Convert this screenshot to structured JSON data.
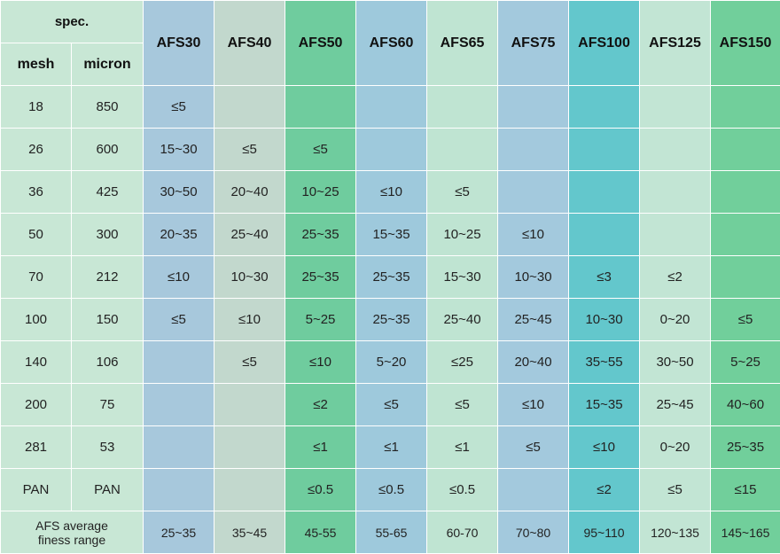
{
  "header": {
    "spec": "spec.",
    "mesh": "mesh",
    "micron": "micron",
    "grades": [
      "AFS30",
      "AFS40",
      "AFS50",
      "AFS60",
      "AFS65",
      "AFS75",
      "AFS100",
      "AFS125",
      "AFS150"
    ]
  },
  "colors": {
    "left": "#c8e7d5",
    "AFS30": "#a7c8dc",
    "AFS40": "#c2d8cd",
    "AFS50": "#6fcc9e",
    "AFS60": "#9ec9dc",
    "AFS65": "#bfe4d2",
    "AFS75": "#a3c9dd",
    "AFS100": "#63c7cc",
    "AFS125": "#c2e5d4",
    "AFS150": "#71cf9b"
  },
  "rows": [
    {
      "mesh": "18",
      "micron": "850",
      "cells": [
        "≤5",
        "",
        "",
        "",
        "",
        "",
        "",
        "",
        ""
      ]
    },
    {
      "mesh": "26",
      "micron": "600",
      "cells": [
        "15~30",
        "≤5",
        "≤5",
        "",
        "",
        "",
        "",
        "",
        ""
      ]
    },
    {
      "mesh": "36",
      "micron": "425",
      "cells": [
        "30~50",
        "20~40",
        "10~25",
        "≤10",
        "≤5",
        "",
        "",
        "",
        ""
      ]
    },
    {
      "mesh": "50",
      "micron": "300",
      "cells": [
        "20~35",
        "25~40",
        "25~35",
        "15~35",
        "10~25",
        "≤10",
        "",
        "",
        ""
      ]
    },
    {
      "mesh": "70",
      "micron": "212",
      "cells": [
        "≤10",
        "10~30",
        "25~35",
        "25~35",
        "15~30",
        "10~30",
        "≤3",
        "≤2",
        ""
      ]
    },
    {
      "mesh": "100",
      "micron": "150",
      "cells": [
        "≤5",
        "≤10",
        "5~25",
        "25~35",
        "25~40",
        "25~45",
        "10~30",
        "0~20",
        "≤5"
      ]
    },
    {
      "mesh": "140",
      "micron": "106",
      "cells": [
        "",
        "≤5",
        "≤10",
        "5~20",
        "≤25",
        "20~40",
        "35~55",
        "30~50",
        "5~25"
      ]
    },
    {
      "mesh": "200",
      "micron": "75",
      "cells": [
        "",
        "",
        "≤2",
        "≤5",
        "≤5",
        "≤10",
        "15~35",
        "25~45",
        "40~60"
      ]
    },
    {
      "mesh": "281",
      "micron": "53",
      "cells": [
        "",
        "",
        "≤1",
        "≤1",
        "≤1",
        "≤5",
        "≤10",
        "0~20",
        "25~35"
      ]
    },
    {
      "mesh": "PAN",
      "micron": "PAN",
      "cells": [
        "",
        "",
        "≤0.5",
        "≤0.5",
        "≤0.5",
        "",
        "≤2",
        "≤5",
        "≤15"
      ]
    }
  ],
  "footer": {
    "label": "AFS average fineness range",
    "label_line1": "AFS average",
    "label_line2": "finess range",
    "values": [
      "25~35",
      "35~45",
      "45-55",
      "55-65",
      "60-70",
      "70~80",
      "95~110",
      "120~135",
      "145~165"
    ]
  }
}
